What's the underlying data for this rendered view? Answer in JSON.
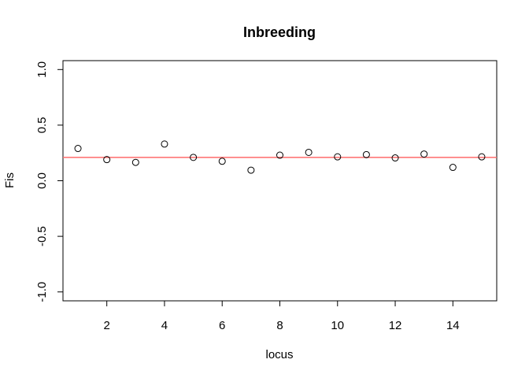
{
  "chart_data": {
    "type": "scatter",
    "title": "Inbreeding",
    "xlabel": "locus",
    "ylabel": "Fis",
    "xlim": [
      0.48,
      15.52
    ],
    "ylim": [
      -1.08,
      1.08
    ],
    "x_ticks": [
      2,
      4,
      6,
      8,
      10,
      12,
      14
    ],
    "x_tick_labels": [
      "2",
      "4",
      "6",
      "8",
      "10",
      "12",
      "14"
    ],
    "y_ticks": [
      -1.0,
      -0.5,
      0.0,
      0.5,
      1.0
    ],
    "y_tick_labels": [
      "-1.0",
      "-0.5",
      "0.0",
      "0.5",
      "1.0"
    ],
    "grid": false,
    "x": [
      1,
      2,
      3,
      4,
      5,
      6,
      7,
      8,
      9,
      10,
      11,
      12,
      13,
      14,
      15
    ],
    "y": [
      0.29,
      0.19,
      0.165,
      0.33,
      0.21,
      0.175,
      0.095,
      0.23,
      0.255,
      0.215,
      0.235,
      0.205,
      0.24,
      0.12,
      0.215
    ],
    "hline": {
      "y": 0.21,
      "color": "#ff6b6b"
    },
    "point_color": "#000000"
  }
}
